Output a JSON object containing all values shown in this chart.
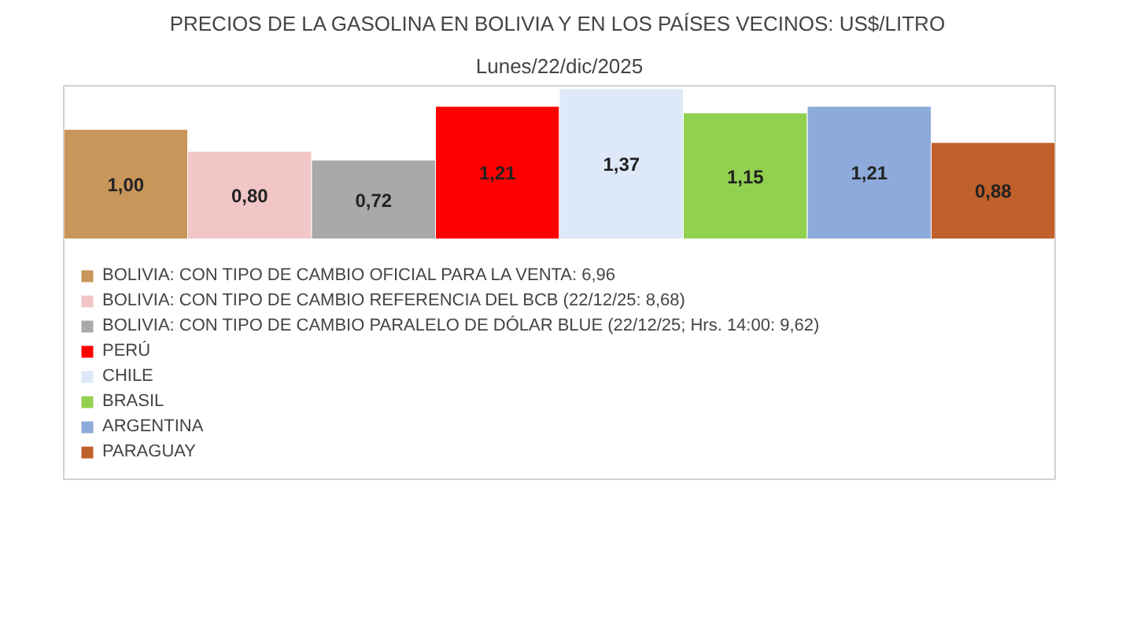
{
  "chart_data": {
    "type": "bar",
    "title": "PRECIOS DE LA GASOLINA EN BOLIVIA Y EN LOS PAÍSES VECINOS: US$/LITRO",
    "subtitle": "Lunes/22/dic/2025",
    "categories": [
      null
    ],
    "legend": "bottom",
    "series": [
      {
        "name": "BOLIVIA: CON TIPO DE CAMBIO OFICIAL PARA LA VENTA: 6,96",
        "color": "#c8955a",
        "values": [
          1.0
        ],
        "value_labels": [
          "1,00"
        ]
      },
      {
        "name": "BOLIVIA: CON TIPO DE CAMBIO REFERENCIA DEL BCB (22/12/25: 8,68)",
        "color": "#f2c6c6",
        "values": [
          0.8
        ],
        "value_labels": [
          "0,80"
        ]
      },
      {
        "name": "BOLIVIA: CON TIPO DE CAMBIO PARALELO DE DÓLAR BLUE (22/12/25; Hrs. 14:00: 9,62)",
        "color": "#a9a9a9",
        "values": [
          0.72
        ],
        "value_labels": [
          "0,72"
        ]
      },
      {
        "name": "PERÚ",
        "color": "#ff0000",
        "values": [
          1.21
        ],
        "value_labels": [
          "1,21"
        ]
      },
      {
        "name": "CHILE",
        "color": "#dde9f8",
        "values": [
          1.37
        ],
        "value_labels": [
          "1,37"
        ]
      },
      {
        "name": "BRASIL",
        "color": "#92d050",
        "values": [
          1.15
        ],
        "value_labels": [
          "1,15"
        ]
      },
      {
        "name": "ARGENTINA",
        "color": "#8eaadb",
        "values": [
          1.21
        ],
        "value_labels": [
          "1,21"
        ]
      },
      {
        "name": "PARAGUAY",
        "color": "#c0602a",
        "values": [
          0.88
        ],
        "value_labels": [
          "0,88"
        ]
      }
    ]
  }
}
